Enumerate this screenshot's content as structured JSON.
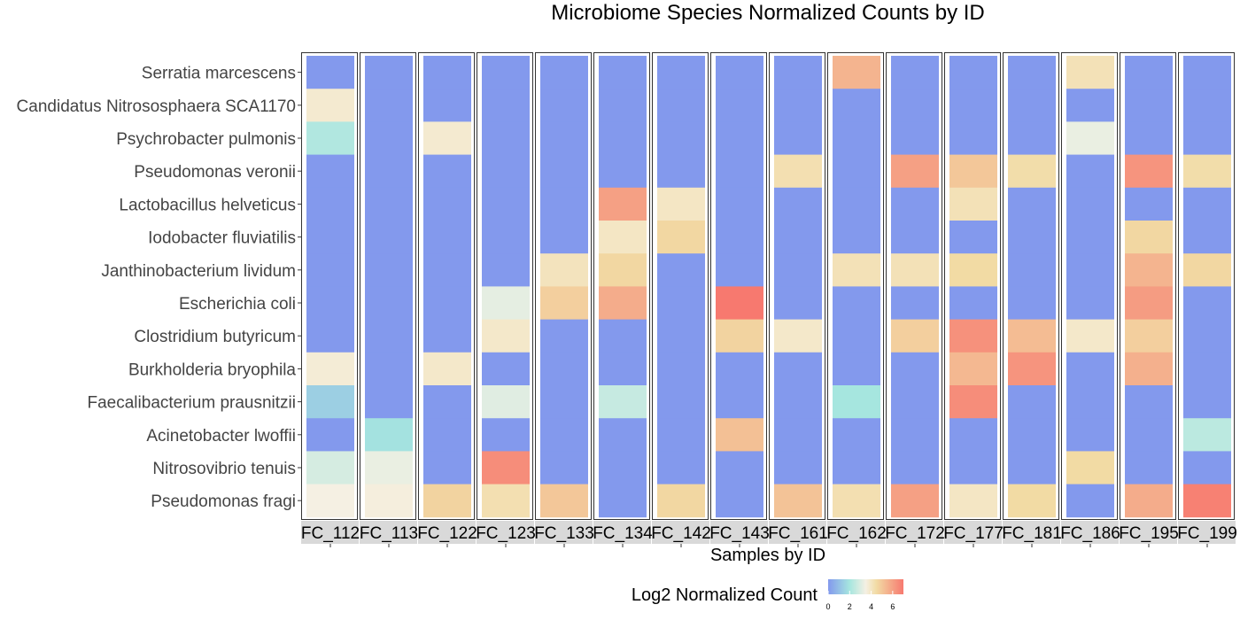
{
  "chart_data": {
    "type": "heatmap",
    "title": "Microbiome Species Normalized Counts by ID",
    "xlabel": "Samples by ID",
    "ylabel": "",
    "samples": [
      "FC_112",
      "FC_113",
      "FC_122",
      "FC_123",
      "FC_133",
      "FC_134",
      "FC_142",
      "FC_143",
      "FC_161",
      "FC_162",
      "FC_172",
      "FC_177",
      "FC_181",
      "FC_186",
      "FC_195",
      "FC_199"
    ],
    "species": [
      "Serratia marcescens",
      "Candidatus Nitrososphaera SCA1170",
      "Psychrobacter pulmonis",
      "Pseudomonas veronii",
      "Lactobacillus helveticus",
      "Iodobacter fluviatilis",
      "Janthinobacterium lividum",
      "Escherichia coli",
      "Clostridium butyricum",
      "Burkholderia bryophila",
      "Faecalibacterium prausnitzii",
      "Acinetobacter lwoffii",
      "Nitrosovibrio tenuis",
      "Pseudomonas fragi"
    ],
    "values": [
      [
        0,
        0,
        0,
        0,
        0,
        0,
        0,
        0,
        0,
        5.5,
        0,
        0,
        0,
        4.2,
        0,
        0
      ],
      [
        3.8,
        0,
        0,
        0,
        0,
        0,
        0,
        0,
        0,
        0,
        0,
        0,
        0,
        0,
        0,
        0
      ],
      [
        2.2,
        0,
        3.8,
        0,
        0,
        0,
        0,
        0,
        0,
        0,
        0,
        0,
        0,
        3.3,
        0,
        0
      ],
      [
        0,
        0,
        0,
        0,
        0,
        0,
        0,
        0,
        4.3,
        0,
        6.0,
        5.0,
        4.4,
        0,
        6.3,
        4.4
      ],
      [
        0,
        0,
        0,
        0,
        0,
        6.0,
        4.0,
        0,
        0,
        0,
        0,
        4.2,
        0,
        0,
        0,
        0
      ],
      [
        0,
        0,
        0,
        0,
        0,
        4.0,
        4.6,
        0,
        0,
        0,
        0,
        0,
        0,
        0,
        4.6,
        0
      ],
      [
        0,
        0,
        0,
        0,
        4.1,
        4.6,
        0,
        0,
        0,
        4.2,
        4.2,
        4.5,
        0,
        0,
        5.5,
        4.6
      ],
      [
        0,
        0,
        0,
        3.2,
        4.8,
        5.7,
        0,
        7.0,
        0,
        0,
        0,
        0,
        0,
        0,
        6.1,
        0
      ],
      [
        0,
        0,
        0,
        3.9,
        0,
        0,
        0,
        4.7,
        3.9,
        0,
        4.8,
        6.4,
        5.3,
        3.9,
        4.8,
        0
      ],
      [
        3.7,
        0,
        3.9,
        0,
        0,
        0,
        0,
        0,
        0,
        0,
        0,
        5.4,
        6.3,
        0,
        5.6,
        0
      ],
      [
        1.4,
        0,
        0,
        3.1,
        0,
        2.6,
        0,
        0,
        0,
        2.0,
        0,
        6.5,
        0,
        0,
        0,
        0
      ],
      [
        0,
        1.9,
        0,
        0,
        0,
        0,
        0,
        5.2,
        0,
        0,
        0,
        0,
        0,
        0,
        0,
        2.4
      ],
      [
        2.9,
        3.3,
        0,
        6.5,
        0,
        0,
        0,
        0,
        0,
        0,
        0,
        0,
        0,
        4.5,
        0,
        0
      ],
      [
        3.5,
        3.6,
        4.7,
        4.3,
        5.0,
        0,
        4.6,
        0,
        5.1,
        4.3,
        6.0,
        4.0,
        4.5,
        0,
        5.7,
        6.8
      ]
    ],
    "legend": {
      "title": "Log2 Normalized Count",
      "ticks": [
        "0",
        "2",
        "4",
        "6"
      ],
      "range": [
        0,
        7
      ]
    },
    "colors": {
      "low": "#8399ed",
      "mid_low": "#a6e6df",
      "mid": "#f5f0e3",
      "mid_high": "#f2dba4",
      "high": "#f7796f"
    }
  }
}
